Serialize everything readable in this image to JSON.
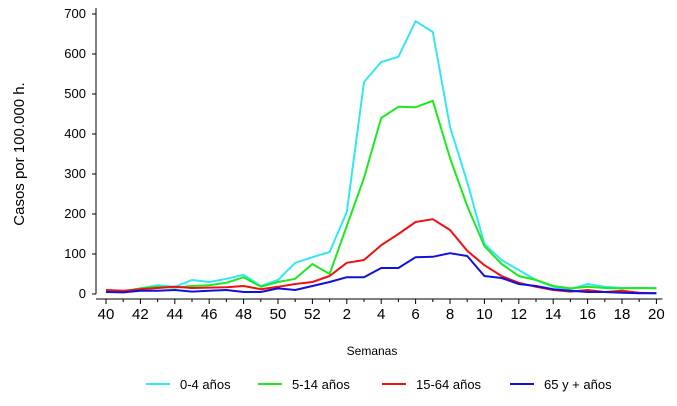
{
  "chart_data": {
    "type": "line",
    "title": "",
    "xlabel": "Semanas",
    "ylabel": "Casos por 100.000 h.",
    "ylim": [
      0,
      700
    ],
    "yticks": [
      0,
      100,
      200,
      300,
      400,
      500,
      600,
      700
    ],
    "grid": false,
    "legend_position": "bottom",
    "x_ticks": [
      "40",
      "42",
      "44",
      "46",
      "48",
      "50",
      "52",
      "2",
      "4",
      "6",
      "8",
      "10",
      "12",
      "14",
      "16",
      "18",
      "20"
    ],
    "x": [
      "40",
      "41",
      "42",
      "43",
      "44",
      "45",
      "46",
      "47",
      "48",
      "49",
      "50",
      "51",
      "52",
      "1",
      "2",
      "3",
      "4",
      "5",
      "6",
      "7",
      "8",
      "9",
      "10",
      "11",
      "12",
      "13",
      "14",
      "15",
      "16",
      "17",
      "18",
      "19",
      "20"
    ],
    "series": [
      {
        "name": "0-4 años",
        "color": "#33e6f2",
        "values": [
          8,
          6,
          14,
          22,
          18,
          35,
          30,
          38,
          48,
          20,
          35,
          78,
          92,
          105,
          205,
          530,
          580,
          593,
          682,
          655,
          418,
          280,
          125,
          85,
          60,
          35,
          18,
          12,
          25,
          18,
          15,
          15,
          15
        ]
      },
      {
        "name": "5-14 años",
        "color": "#1ee81e",
        "values": [
          6,
          7,
          14,
          18,
          16,
          20,
          22,
          28,
          42,
          18,
          30,
          38,
          75,
          50,
          170,
          290,
          440,
          468,
          467,
          483,
          340,
          220,
          120,
          75,
          45,
          35,
          20,
          14,
          18,
          15,
          14,
          15,
          14
        ]
      },
      {
        "name": "15-64 años",
        "color": "#ee1111",
        "values": [
          10,
          8,
          12,
          15,
          18,
          15,
          16,
          17,
          20,
          12,
          18,
          25,
          30,
          45,
          78,
          85,
          122,
          150,
          180,
          187,
          160,
          108,
          72,
          45,
          28,
          18,
          10,
          6,
          10,
          5,
          8,
          3,
          2
        ]
      },
      {
        "name": "65 y + años",
        "color": "#1111dd",
        "values": [
          5,
          4,
          8,
          8,
          10,
          6,
          8,
          10,
          5,
          5,
          14,
          10,
          20,
          30,
          42,
          42,
          65,
          65,
          92,
          93,
          102,
          95,
          45,
          40,
          25,
          20,
          12,
          8,
          5,
          5,
          3,
          2,
          2
        ]
      }
    ]
  }
}
